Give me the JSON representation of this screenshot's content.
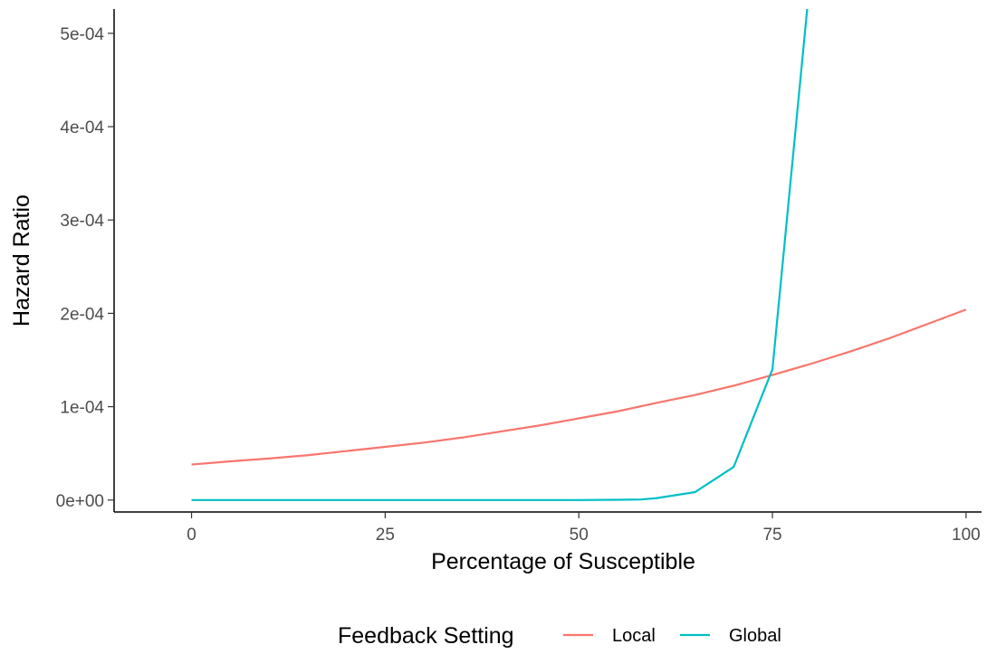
{
  "chart_data": {
    "type": "line",
    "title": "",
    "xlabel": "Percentage of Susceptible",
    "ylabel": "Hazard Ratio",
    "xlim": [
      -10,
      102
    ],
    "ylim": [
      -1.28e-05,
      0.000526
    ],
    "x_ticks": [
      {
        "value": 0,
        "label": "0"
      },
      {
        "value": 25,
        "label": "25"
      },
      {
        "value": 50,
        "label": "50"
      },
      {
        "value": 75,
        "label": "75"
      },
      {
        "value": 100,
        "label": "100"
      }
    ],
    "y_ticks": [
      {
        "value": 0,
        "label": "0e+00"
      },
      {
        "value": 0.0001,
        "label": "1e-04"
      },
      {
        "value": 0.0002,
        "label": "2e-04"
      },
      {
        "value": 0.0003,
        "label": "3e-04"
      },
      {
        "value": 0.0004,
        "label": "4e-04"
      },
      {
        "value": 0.0005,
        "label": "5e-04"
      }
    ],
    "grid": false,
    "legend": {
      "title": "Feedback Setting",
      "position": "bottom"
    },
    "series": [
      {
        "name": "Local",
        "color": "#F8766D",
        "x": [
          0,
          5,
          10,
          15,
          20,
          25,
          30,
          35,
          40,
          45,
          50,
          55,
          60,
          65,
          70,
          75,
          80,
          85,
          90,
          95,
          100
        ],
        "values": [
          3.8e-05,
          4.15e-05,
          4.45e-05,
          4.8e-05,
          5.25e-05,
          5.7e-05,
          6.15e-05,
          6.7e-05,
          7.35e-05,
          8e-05,
          8.75e-05,
          9.5e-05,
          0.000104,
          0.0001125,
          0.0001225,
          0.000134,
          0.000146,
          0.000159,
          0.000173,
          0.0001885,
          0.000204
        ]
      },
      {
        "name": "Global",
        "color": "#00BFC4",
        "x": [
          0,
          5,
          10,
          15,
          20,
          25,
          30,
          35,
          40,
          45,
          50,
          55,
          58,
          60,
          65,
          70,
          75,
          80
        ],
        "values": [
          0,
          0,
          0,
          0,
          0,
          0,
          0,
          0,
          0,
          0,
          0,
          3e-07,
          6e-07,
          2e-06,
          8.5e-06,
          3.55e-05,
          0.00014,
          0.00057
        ]
      }
    ]
  }
}
